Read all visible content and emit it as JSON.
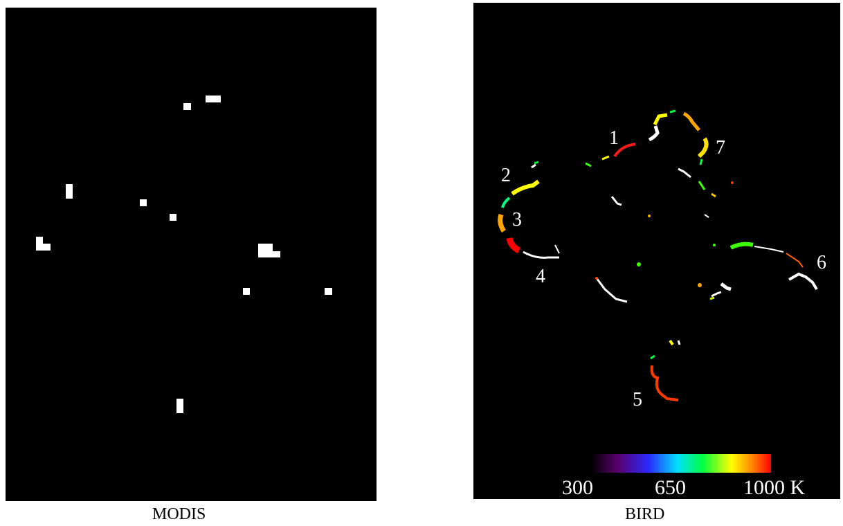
{
  "panels": {
    "modis": {
      "caption": "MODIS"
    },
    "bird": {
      "caption": "BIRD"
    }
  },
  "fire_labels": [
    "1",
    "2",
    "3",
    "4",
    "5",
    "6",
    "7"
  ],
  "colorbar": {
    "ticks": [
      "300",
      "650",
      "1000 K"
    ],
    "range_kelvin": [
      300,
      1000
    ],
    "colors": [
      "#000000",
      "#5a006e",
      "#2a2aff",
      "#00e0ff",
      "#00ff40",
      "#ffff00",
      "#ff8000",
      "#ff0000"
    ]
  }
}
